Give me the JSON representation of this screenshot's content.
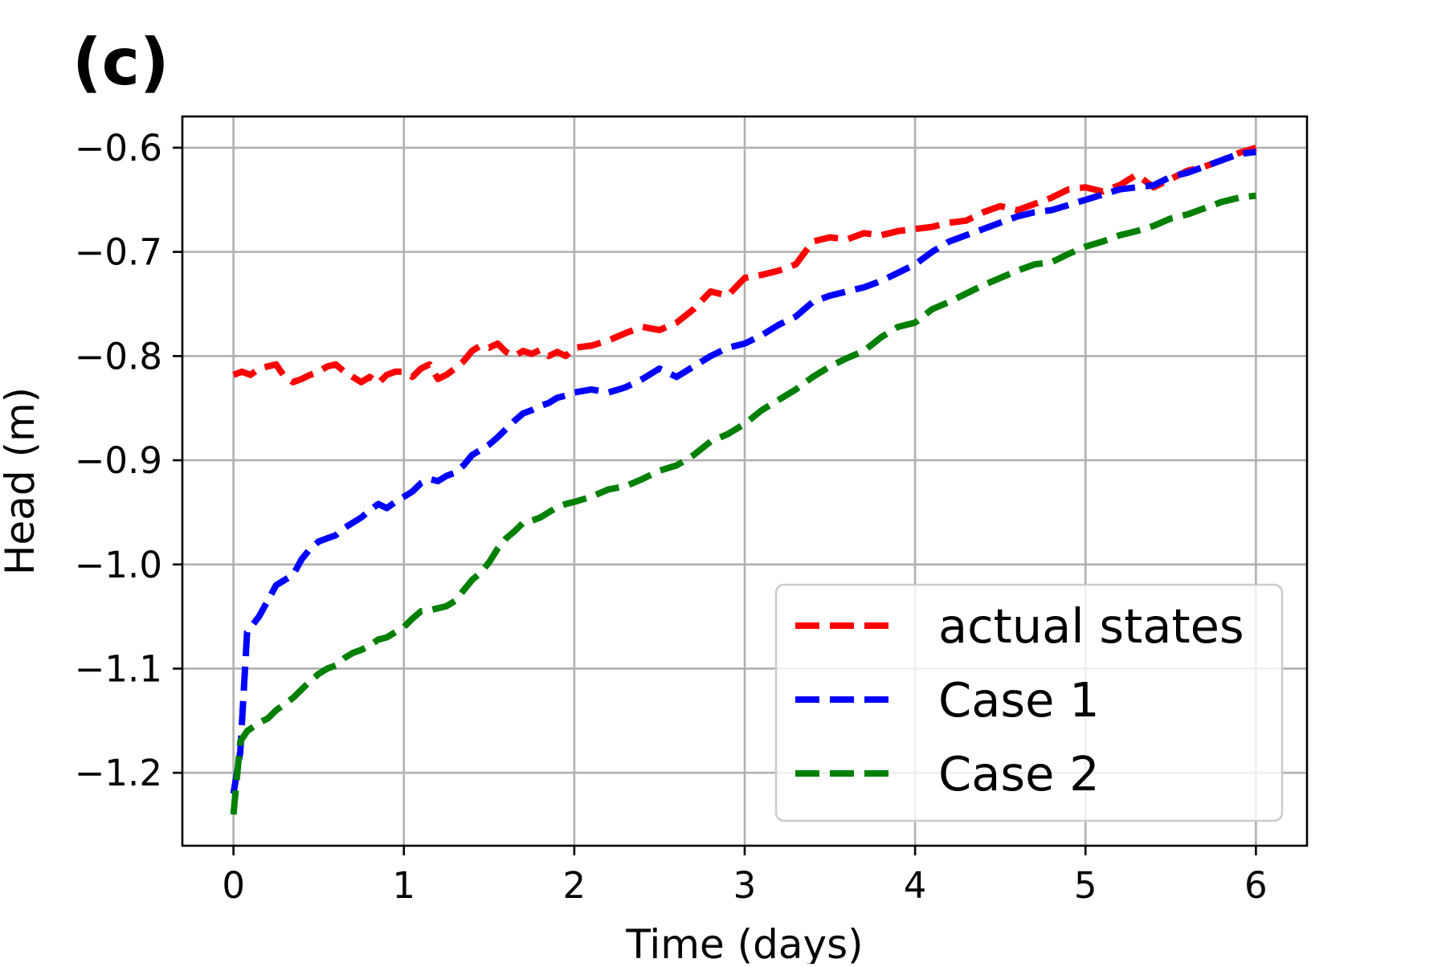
{
  "chart_data": {
    "type": "line",
    "panel_label": "(c)",
    "xlabel": "Time (days)",
    "ylabel": "Head (m)",
    "xlim": [
      -0.3,
      6.3
    ],
    "ylim": [
      -1.27,
      -0.57
    ],
    "grid": true,
    "legend_position": "lower-right",
    "xticks": [
      0,
      1,
      2,
      3,
      4,
      5,
      6
    ],
    "xtick_labels": [
      "0",
      "1",
      "2",
      "3",
      "4",
      "5",
      "6"
    ],
    "yticks": [
      -0.6,
      -0.7,
      -0.8,
      -0.9,
      -1.0,
      -1.1,
      -1.2
    ],
    "ytick_labels": [
      "−0.6",
      "−0.7",
      "−0.8",
      "−0.9",
      "−1.0",
      "−1.1",
      "−1.2"
    ],
    "series": [
      {
        "name": "actual states",
        "color": "#ff0000",
        "x": [
          0,
          0.05,
          0.1,
          0.15,
          0.2,
          0.25,
          0.3,
          0.35,
          0.4,
          0.45,
          0.5,
          0.55,
          0.6,
          0.65,
          0.7,
          0.75,
          0.8,
          0.85,
          0.9,
          0.95,
          1.0,
          1.05,
          1.1,
          1.15,
          1.2,
          1.25,
          1.3,
          1.35,
          1.4,
          1.45,
          1.5,
          1.55,
          1.6,
          1.65,
          1.7,
          1.75,
          1.8,
          1.85,
          1.9,
          1.95,
          2.0,
          2.1,
          2.2,
          2.3,
          2.4,
          2.5,
          2.6,
          2.7,
          2.8,
          2.9,
          3.0,
          3.1,
          3.2,
          3.3,
          3.4,
          3.5,
          3.6,
          3.7,
          3.8,
          3.9,
          4.0,
          4.1,
          4.2,
          4.3,
          4.4,
          4.5,
          4.6,
          4.7,
          4.8,
          4.9,
          5.0,
          5.1,
          5.2,
          5.3,
          5.4,
          5.5,
          5.6,
          5.7,
          5.8,
          5.9,
          6.0
        ],
        "y": [
          -0.818,
          -0.815,
          -0.818,
          -0.812,
          -0.81,
          -0.808,
          -0.82,
          -0.825,
          -0.822,
          -0.818,
          -0.815,
          -0.81,
          -0.808,
          -0.815,
          -0.82,
          -0.825,
          -0.82,
          -0.826,
          -0.818,
          -0.815,
          -0.815,
          -0.82,
          -0.812,
          -0.808,
          -0.822,
          -0.818,
          -0.812,
          -0.805,
          -0.795,
          -0.79,
          -0.792,
          -0.788,
          -0.796,
          -0.8,
          -0.795,
          -0.798,
          -0.794,
          -0.8,
          -0.796,
          -0.8,
          -0.792,
          -0.79,
          -0.785,
          -0.778,
          -0.772,
          -0.775,
          -0.768,
          -0.755,
          -0.738,
          -0.742,
          -0.725,
          -0.722,
          -0.718,
          -0.712,
          -0.69,
          -0.686,
          -0.688,
          -0.682,
          -0.684,
          -0.68,
          -0.678,
          -0.676,
          -0.672,
          -0.67,
          -0.662,
          -0.656,
          -0.66,
          -0.654,
          -0.648,
          -0.64,
          -0.638,
          -0.642,
          -0.636,
          -0.626,
          -0.638,
          -0.63,
          -0.622,
          -0.618,
          -0.612,
          -0.605,
          -0.6
        ]
      },
      {
        "name": "Case 1",
        "color": "#0000ff",
        "x": [
          0,
          0.04,
          0.08,
          0.15,
          0.2,
          0.25,
          0.3,
          0.35,
          0.4,
          0.45,
          0.5,
          0.55,
          0.6,
          0.65,
          0.7,
          0.75,
          0.8,
          0.85,
          0.9,
          0.95,
          1.0,
          1.05,
          1.1,
          1.15,
          1.2,
          1.25,
          1.3,
          1.35,
          1.4,
          1.45,
          1.5,
          1.55,
          1.6,
          1.65,
          1.7,
          1.75,
          1.8,
          1.85,
          1.9,
          1.95,
          2.0,
          2.1,
          2.2,
          2.3,
          2.4,
          2.5,
          2.6,
          2.7,
          2.8,
          2.9,
          3.0,
          3.1,
          3.2,
          3.3,
          3.4,
          3.5,
          3.6,
          3.7,
          3.8,
          3.9,
          4.0,
          4.1,
          4.2,
          4.3,
          4.4,
          4.5,
          4.6,
          4.7,
          4.8,
          4.9,
          5.0,
          5.1,
          5.2,
          5.3,
          5.4,
          5.5,
          5.6,
          5.7,
          5.8,
          5.9,
          6.0
        ],
        "y": [
          -1.22,
          -1.18,
          -1.065,
          -1.05,
          -1.035,
          -1.02,
          -1.015,
          -1.01,
          -0.995,
          -0.985,
          -0.978,
          -0.975,
          -0.972,
          -0.965,
          -0.96,
          -0.955,
          -0.948,
          -0.942,
          -0.946,
          -0.94,
          -0.935,
          -0.93,
          -0.922,
          -0.918,
          -0.92,
          -0.915,
          -0.912,
          -0.905,
          -0.895,
          -0.89,
          -0.885,
          -0.878,
          -0.87,
          -0.862,
          -0.855,
          -0.852,
          -0.848,
          -0.845,
          -0.84,
          -0.838,
          -0.835,
          -0.832,
          -0.835,
          -0.83,
          -0.822,
          -0.812,
          -0.82,
          -0.81,
          -0.8,
          -0.792,
          -0.788,
          -0.78,
          -0.77,
          -0.762,
          -0.748,
          -0.742,
          -0.738,
          -0.734,
          -0.728,
          -0.72,
          -0.712,
          -0.7,
          -0.69,
          -0.684,
          -0.678,
          -0.672,
          -0.666,
          -0.662,
          -0.66,
          -0.655,
          -0.65,
          -0.645,
          -0.64,
          -0.638,
          -0.636,
          -0.628,
          -0.624,
          -0.618,
          -0.612,
          -0.606,
          -0.604
        ]
      },
      {
        "name": "Case 2",
        "color": "#008000",
        "x": [
          0,
          0.04,
          0.08,
          0.15,
          0.2,
          0.25,
          0.3,
          0.35,
          0.4,
          0.45,
          0.5,
          0.55,
          0.6,
          0.65,
          0.7,
          0.75,
          0.8,
          0.85,
          0.9,
          0.95,
          1.0,
          1.05,
          1.1,
          1.15,
          1.2,
          1.25,
          1.3,
          1.35,
          1.4,
          1.45,
          1.5,
          1.55,
          1.6,
          1.65,
          1.7,
          1.75,
          1.8,
          1.85,
          1.9,
          1.95,
          2.0,
          2.1,
          2.2,
          2.3,
          2.4,
          2.5,
          2.6,
          2.7,
          2.8,
          2.9,
          3.0,
          3.1,
          3.2,
          3.3,
          3.4,
          3.5,
          3.6,
          3.7,
          3.8,
          3.9,
          4.0,
          4.1,
          4.2,
          4.3,
          4.4,
          4.5,
          4.6,
          4.7,
          4.8,
          4.9,
          5.0,
          5.1,
          5.2,
          5.3,
          5.4,
          5.5,
          5.6,
          5.7,
          5.8,
          5.9,
          6.0
        ],
        "y": [
          -1.24,
          -1.17,
          -1.16,
          -1.152,
          -1.148,
          -1.14,
          -1.134,
          -1.128,
          -1.12,
          -1.112,
          -1.105,
          -1.1,
          -1.097,
          -1.09,
          -1.085,
          -1.082,
          -1.078,
          -1.072,
          -1.07,
          -1.065,
          -1.06,
          -1.052,
          -1.045,
          -1.044,
          -1.042,
          -1.04,
          -1.035,
          -1.025,
          -1.015,
          -1.008,
          -0.998,
          -0.985,
          -0.975,
          -0.968,
          -0.96,
          -0.958,
          -0.955,
          -0.95,
          -0.945,
          -0.942,
          -0.94,
          -0.935,
          -0.928,
          -0.925,
          -0.918,
          -0.91,
          -0.905,
          -0.895,
          -0.882,
          -0.875,
          -0.865,
          -0.852,
          -0.842,
          -0.832,
          -0.82,
          -0.81,
          -0.802,
          -0.795,
          -0.782,
          -0.772,
          -0.768,
          -0.755,
          -0.748,
          -0.74,
          -0.732,
          -0.725,
          -0.718,
          -0.712,
          -0.71,
          -0.702,
          -0.695,
          -0.69,
          -0.684,
          -0.68,
          -0.675,
          -0.668,
          -0.664,
          -0.658,
          -0.652,
          -0.648,
          -0.646
        ]
      }
    ]
  }
}
